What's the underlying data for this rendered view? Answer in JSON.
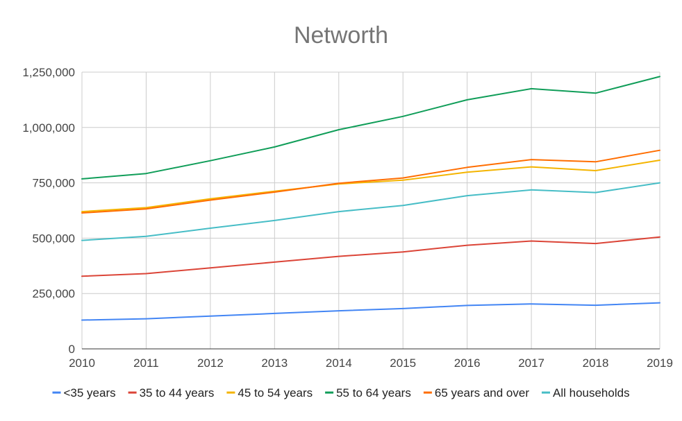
{
  "chart_data": {
    "type": "line",
    "title": "Networth",
    "xlabel": "",
    "ylabel": "",
    "x": [
      "2010",
      "2011",
      "2012",
      "2013",
      "2014",
      "2015",
      "2016",
      "2017",
      "2018",
      "2019"
    ],
    "ylim": [
      0,
      1250000
    ],
    "yticks": [
      0,
      250000,
      500000,
      750000,
      1000000,
      1250000
    ],
    "ytick_labels": [
      "0",
      "250,000",
      "500,000",
      "750,000",
      "1,000,000",
      "1,250,000"
    ],
    "grid": true,
    "legend_position": "bottom",
    "series": [
      {
        "name": "<35 years",
        "color": "#4285f4",
        "values": [
          130000,
          136000,
          148000,
          160000,
          172000,
          182000,
          196000,
          203000,
          197000,
          208000
        ]
      },
      {
        "name": "35 to 44 years",
        "color": "#db4437",
        "values": [
          328000,
          340000,
          366000,
          392000,
          418000,
          438000,
          468000,
          487000,
          476000,
          505000
        ]
      },
      {
        "name": "45 to 54 years",
        "color": "#f4b400",
        "values": [
          620000,
          638000,
          678000,
          712000,
          745000,
          762000,
          798000,
          822000,
          805000,
          852000
        ]
      },
      {
        "name": "55 to 64 years",
        "color": "#0f9d58",
        "values": [
          768000,
          792000,
          850000,
          912000,
          990000,
          1050000,
          1125000,
          1175000,
          1155000,
          1230000
        ]
      },
      {
        "name": "65 years and over",
        "color": "#ff6d00",
        "values": [
          614000,
          632000,
          672000,
          708000,
          748000,
          772000,
          820000,
          855000,
          845000,
          897000
        ]
      },
      {
        "name": "All households",
        "color": "#46bdc6",
        "values": [
          490000,
          508000,
          545000,
          580000,
          620000,
          648000,
          692000,
          718000,
          706000,
          750000
        ]
      }
    ]
  }
}
